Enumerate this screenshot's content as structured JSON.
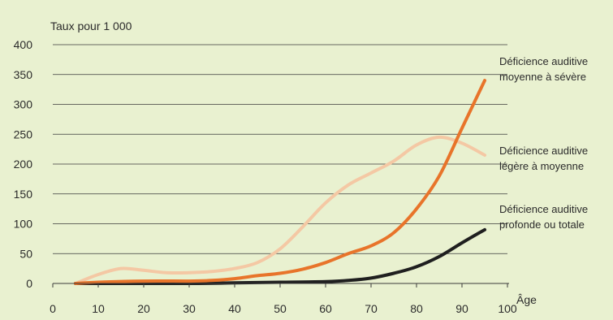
{
  "chart_data": {
    "type": "line",
    "ylabel": "Taux pour 1 000",
    "xlabel": "Âge",
    "xlim": [
      0,
      100
    ],
    "ylim": [
      0,
      400
    ],
    "xticks": [
      "0",
      "10",
      "20",
      "30",
      "40",
      "50",
      "60",
      "70",
      "80",
      "90",
      "100"
    ],
    "yticks": [
      "0",
      "50",
      "100",
      "150",
      "200",
      "250",
      "300",
      "350",
      "400"
    ],
    "grid": true,
    "background": "#e9f1d0",
    "series": [
      {
        "name": "Déficience auditive moyenne à sévère",
        "label_lines": [
          "Déficience auditive",
          "moyenne à sévère"
        ],
        "color": "#e8742a",
        "x": [
          5,
          10,
          20,
          30,
          35,
          40,
          45,
          50,
          55,
          60,
          65,
          70,
          75,
          80,
          85,
          90,
          95
        ],
        "y": [
          0,
          2,
          4,
          4,
          5,
          8,
          13,
          17,
          24,
          35,
          50,
          63,
          85,
          125,
          180,
          260,
          340
        ]
      },
      {
        "name": "Déficience auditive légère à moyenne",
        "label_lines": [
          "Déficience auditive",
          "légère à moyenne"
        ],
        "color": "#f4c8a4",
        "x": [
          5,
          10,
          15,
          20,
          25,
          30,
          35,
          40,
          45,
          50,
          55,
          60,
          65,
          70,
          75,
          80,
          85,
          90,
          95
        ],
        "y": [
          0,
          15,
          25,
          22,
          18,
          18,
          20,
          25,
          35,
          58,
          95,
          135,
          165,
          185,
          205,
          232,
          245,
          235,
          215
        ]
      },
      {
        "name": "Déficience auditive profonde ou totale",
        "label_lines": [
          "Déficience auditive",
          "profonde ou totale"
        ],
        "color": "#1f1f1f",
        "x": [
          5,
          30,
          40,
          50,
          60,
          65,
          70,
          75,
          80,
          85,
          90,
          95
        ],
        "y": [
          0,
          0,
          1,
          2,
          3,
          5,
          9,
          17,
          28,
          45,
          68,
          90
        ]
      }
    ]
  }
}
